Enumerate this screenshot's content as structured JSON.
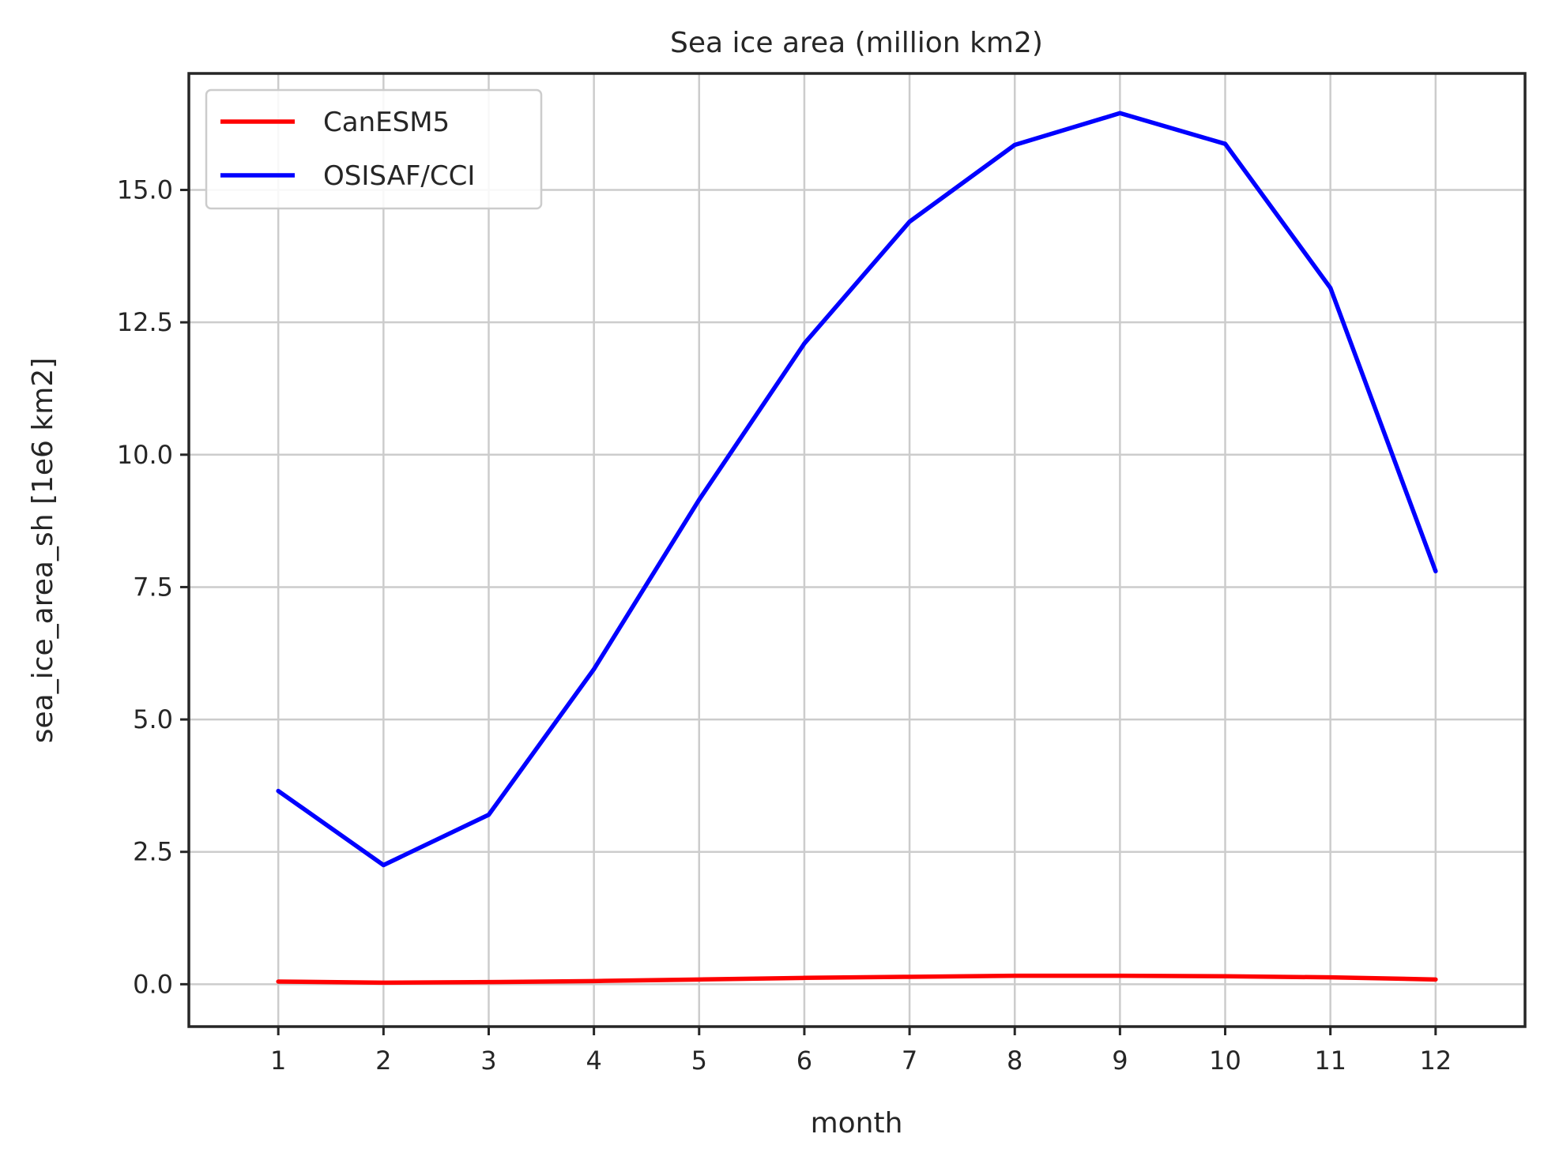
{
  "chart_data": {
    "type": "line",
    "title": "Sea ice area (million km2)",
    "xlabel": "month",
    "ylabel": "sea_ice_area_sh [1e6 km2]",
    "x": [
      1,
      2,
      3,
      4,
      5,
      6,
      7,
      8,
      9,
      10,
      11,
      12
    ],
    "xlim": [
      0.15,
      12.85
    ],
    "ylim": [
      -0.8,
      17.2
    ],
    "xticks": [
      1,
      2,
      3,
      4,
      5,
      6,
      7,
      8,
      9,
      10,
      11,
      12
    ],
    "xtick_labels": [
      "1",
      "2",
      "3",
      "4",
      "5",
      "6",
      "7",
      "8",
      "9",
      "10",
      "11",
      "12"
    ],
    "yticks": [
      0.0,
      2.5,
      5.0,
      7.5,
      10.0,
      12.5,
      15.0
    ],
    "ytick_labels": [
      "0.0",
      "2.5",
      "5.0",
      "7.5",
      "10.0",
      "12.5",
      "15.0"
    ],
    "grid": true,
    "legend_position": "top-left",
    "series": [
      {
        "name": "CanESM5",
        "color": "#ff0000",
        "values": [
          0.05,
          0.03,
          0.04,
          0.06,
          0.09,
          0.12,
          0.14,
          0.16,
          0.16,
          0.15,
          0.13,
          0.09
        ]
      },
      {
        "name": "OSISAF/CCI",
        "color": "#0000ff",
        "values": [
          3.65,
          2.25,
          3.2,
          5.95,
          9.15,
          12.1,
          14.4,
          15.85,
          16.45,
          15.87,
          13.15,
          7.8
        ]
      }
    ]
  }
}
